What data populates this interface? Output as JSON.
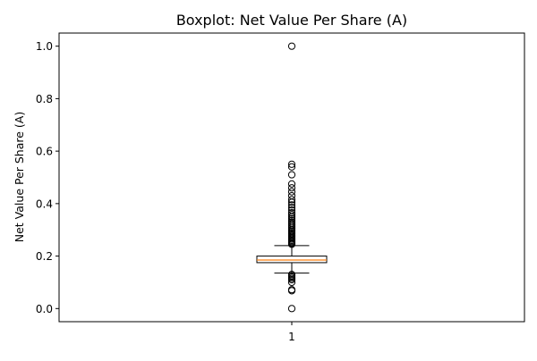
{
  "chart_data": {
    "type": "box",
    "title": "Boxplot:  Net Value Per Share (A)",
    "xlabel": "",
    "ylabel": "Net Value Per Share (A)",
    "categories": [
      "1"
    ],
    "ylim": [
      -0.05,
      1.05
    ],
    "yticks": [
      0.0,
      0.2,
      0.4,
      0.6,
      0.8,
      1.0
    ],
    "ytick_labels": [
      "0.0",
      "0.2",
      "0.4",
      "0.6",
      "0.8",
      "1.0"
    ],
    "box": {
      "whisker_low": 0.135,
      "q1": 0.175,
      "median": 0.185,
      "q3": 0.2,
      "whisker_high": 0.24
    },
    "outliers": [
      1.0,
      0.55,
      0.54,
      0.51,
      0.475,
      0.46,
      0.445,
      0.43,
      0.415,
      0.405,
      0.395,
      0.385,
      0.375,
      0.365,
      0.358,
      0.35,
      0.343,
      0.336,
      0.33,
      0.324,
      0.318,
      0.312,
      0.306,
      0.3,
      0.295,
      0.29,
      0.285,
      0.28,
      0.275,
      0.27,
      0.265,
      0.26,
      0.256,
      0.252,
      0.248,
      0.245,
      0.13,
      0.125,
      0.12,
      0.115,
      0.11,
      0.1,
      0.072,
      0.068,
      0.0
    ],
    "colors": {
      "box_edge": "#000000",
      "median": "#ff7f0e",
      "outlier_edge": "#000000",
      "axis": "#000000",
      "background": "#ffffff"
    }
  }
}
